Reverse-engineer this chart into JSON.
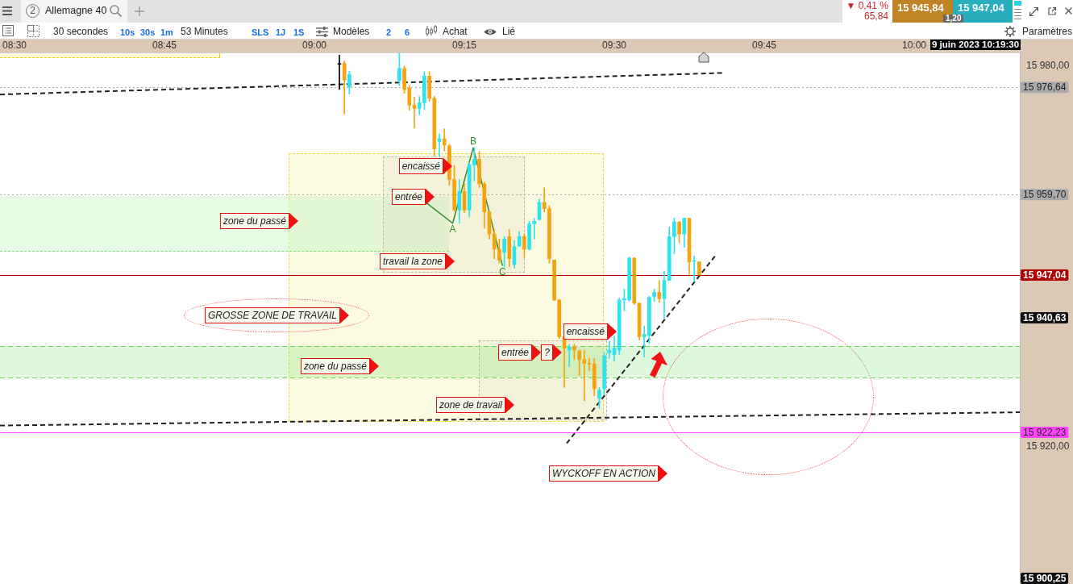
{
  "chart_data": {
    "type": "candlestick",
    "x": [
      9.0417,
      9.05,
      9.0583,
      9.1417,
      9.15,
      9.1583,
      9.1667,
      9.175,
      9.1833,
      9.1917,
      9.2,
      9.2083,
      9.2167,
      9.225,
      9.2333,
      9.2417,
      9.25,
      9.2583,
      9.2667,
      9.275,
      9.2833,
      9.2917,
      9.3,
      9.3083,
      9.3167,
      9.325,
      9.3333,
      9.3417,
      9.35,
      9.3583,
      9.3667,
      9.375,
      9.3833,
      9.3917,
      9.4,
      9.4083,
      9.4167,
      9.425,
      9.4333,
      9.4417,
      9.45,
      9.4583,
      9.4667,
      9.475,
      9.4833,
      9.4917,
      9.5,
      9.5083,
      9.5167,
      9.525,
      9.5333,
      9.5417,
      9.55,
      9.5583,
      9.5667,
      9.575,
      9.5833,
      9.5917,
      9.6,
      9.6083,
      9.6167,
      9.625,
      9.6333,
      9.6417
    ],
    "ohlc": [
      [
        15980.25,
        15981.7,
        15976.3,
        15980.25
      ],
      [
        15980.4,
        15980.8,
        15972.4,
        15977.8
      ],
      [
        15976.7,
        15979.2,
        15975.6,
        15978.7
      ],
      [
        15977.7,
        15982.0,
        15976.9,
        15979.6
      ],
      [
        15979.6,
        15980.0,
        15975.7,
        15976.3
      ],
      [
        15976.5,
        15976.9,
        15973.0,
        15973.8
      ],
      [
        15973.8,
        15975.1,
        15970.2,
        15973.3
      ],
      [
        15973.3,
        15975.2,
        15972.3,
        15974.2
      ],
      [
        15974.2,
        15979.1,
        15973.1,
        15978.4
      ],
      [
        15978.4,
        15979.1,
        15974.4,
        15974.9
      ],
      [
        15974.9,
        15975.2,
        15965.8,
        15966.9
      ],
      [
        15968.1,
        15969.3,
        15965.8,
        15968.5
      ],
      [
        15968.5,
        15970.1,
        15966.6,
        15967.5
      ],
      [
        15967.4,
        15967.7,
        15961.2,
        15962.1
      ],
      [
        15962.1,
        15964.3,
        15957.1,
        15957.3
      ],
      [
        15957.3,
        15962.1,
        15955.2,
        15960.2
      ],
      [
        15960.2,
        15961.5,
        15956.9,
        15957.3
      ],
      [
        15957.3,
        15964.8,
        15956.2,
        15964.4
      ],
      [
        15964.4,
        15967.1,
        15961.9,
        15965.3
      ],
      [
        15965.3,
        15966.5,
        15960.8,
        15961.4
      ],
      [
        15961.4,
        15961.7,
        15954.4,
        15957.0
      ],
      [
        15957.0,
        15957.2,
        15952.7,
        15953.5
      ],
      [
        15953.5,
        15954.2,
        15949.6,
        15951.1
      ],
      [
        15951.1,
        15952.7,
        15948.9,
        15949.4
      ],
      [
        15950.6,
        15953.1,
        15948.3,
        15952.7
      ],
      [
        15953.1,
        15954.2,
        15948.3,
        15949.6
      ],
      [
        15948.7,
        15952.5,
        15948.1,
        15951.5
      ],
      [
        15951.6,
        15953.9,
        15951.6,
        15953.1
      ],
      [
        15953.1,
        15953.5,
        15949.8,
        15951.1
      ],
      [
        15951.1,
        15955.5,
        15951.0,
        15955.1
      ],
      [
        15955.1,
        15956.0,
        15952.7,
        15955.5
      ],
      [
        15955.8,
        15959.0,
        15955.7,
        15958.5
      ],
      [
        15958.5,
        15960.8,
        15957.0,
        15957.5
      ],
      [
        15957.5,
        15958.0,
        15948.9,
        15949.6
      ],
      [
        15949.4,
        15949.4,
        15943.0,
        15943.1
      ],
      [
        15943.1,
        15943.2,
        15937.0,
        15937.3
      ],
      [
        15937.3,
        15937.3,
        15929.3,
        15935.5
      ],
      [
        15935.2,
        15936.1,
        15932.6,
        15935.7
      ],
      [
        15935.7,
        15936.1,
        15933.7,
        15935.2
      ],
      [
        15935.1,
        15935.1,
        15931.2,
        15933.7
      ],
      [
        15933.7,
        15935.1,
        15927.2,
        15933.1
      ],
      [
        15933.1,
        15933.9,
        15932.0,
        15933.0
      ],
      [
        15933.0,
        15933.9,
        15928.0,
        15929.1
      ],
      [
        15927.6,
        15929.3,
        15926.0,
        15928.9
      ],
      [
        15929.1,
        15934.8,
        15928.1,
        15934.3
      ],
      [
        15934.8,
        15936.6,
        15933.9,
        15935.2
      ],
      [
        15934.5,
        15937.4,
        15933.5,
        15935.5
      ],
      [
        15935.2,
        15943.4,
        15934.5,
        15943.1
      ],
      [
        15943.1,
        15944.8,
        15941.4,
        15943.3
      ],
      [
        15943.1,
        15949.9,
        15942.9,
        15949.7
      ],
      [
        15949.7,
        15949.8,
        15942.4,
        15942.6
      ],
      [
        15942.6,
        15942.6,
        15936.8,
        15937.3
      ],
      [
        15937.3,
        15939.0,
        15934.1,
        15937.7
      ],
      [
        15937.5,
        15943.7,
        15936.2,
        15943.5
      ],
      [
        15943.6,
        15944.8,
        15942.9,
        15944.3
      ],
      [
        15944.3,
        15946.2,
        15942.7,
        15943.3
      ],
      [
        15943.3,
        15947.7,
        15940.2,
        15946.2
      ],
      [
        15946.2,
        15954.6,
        15946.2,
        15953.1
      ],
      [
        15953.1,
        15956.0,
        15950.4,
        15955.4
      ],
      [
        15955.4,
        15955.5,
        15952.1,
        15953.5
      ],
      [
        15953.5,
        15956.0,
        15951.4,
        15956.0
      ],
      [
        15956.0,
        15956.0,
        15947.1,
        15949.1
      ],
      [
        15949.2,
        15950.0,
        15946.0,
        15949.3
      ],
      [
        15949.1,
        15949.1,
        15947.04,
        15947.04
      ]
    ],
    "colors": [
      "#000000",
      "#f5a30f",
      "#2ee3ec",
      "#2ee3ec",
      "#f5a30f",
      "#f5a30f",
      "#f5a30f",
      "#2ee3ec",
      "#2ee3ec",
      "#f5a30f",
      "#f5a30f",
      "#2ee3ec",
      "#f5a30f",
      "#f5a30f",
      "#f5a30f",
      "#2ee3ec",
      "#f5a30f",
      "#2ee3ec",
      "#2ee3ec",
      "#f5a30f",
      "#f5a30f",
      "#f5a30f",
      "#f5a30f",
      "#f5a30f",
      "#2ee3ec",
      "#f5a30f",
      "#2ee3ec",
      "#2ee3ec",
      "#f5a30f",
      "#2ee3ec",
      "#2ee3ec",
      "#2ee3ec",
      "#f5a30f",
      "#f5a30f",
      "#f5a30f",
      "#f5a30f",
      "#f5a30f",
      "#2ee3ec",
      "#f5a30f",
      "#f5a30f",
      "#f5a30f",
      "#f5a30f",
      "#f5a30f",
      "#2ee3ec",
      "#2ee3ec",
      "#2ee3ec",
      "#2ee3ec",
      "#2ee3ec",
      "#2ee3ec",
      "#2ee3ec",
      "#f5a30f",
      "#f5a30f",
      "#2ee3ec",
      "#2ee3ec",
      "#2ee3ec",
      "#f5a30f",
      "#2ee3ec",
      "#2ee3ec",
      "#2ee3ec",
      "#f5a30f",
      "#2ee3ec",
      "#f5a30f",
      "#2ee3ec",
      "#f5a30f"
    ],
    "xlim": [
      8.4758,
      10.1761
    ],
    "xticks": [
      {
        "value": 8.5,
        "label": "08:30"
      },
      {
        "value": 8.75,
        "label": "08:45"
      },
      {
        "value": 9,
        "label": "09:00"
      },
      {
        "value": 9.25,
        "label": "09:15"
      },
      {
        "value": 9.5,
        "label": "09:30"
      },
      {
        "value": 9.75,
        "label": "09:45"
      },
      {
        "value": 10,
        "label": "10:00"
      }
    ],
    "ylim": [
      15900.25,
      15982.13
    ],
    "yticks": [
      {
        "value": 15920,
        "label": "15 920,00"
      },
      {
        "value": 15980,
        "label": "15 980,00"
      }
    ],
    "series": [
      {
        "type": "line",
        "x": [
          8.4758,
          9.6815
        ],
        "values": [
          15975.5,
          15978.9
        ],
        "color": "#222222",
        "line_style": "dashed"
      },
      {
        "type": "line",
        "x": [
          8.4758,
          10.1761
        ],
        "values": [
          15923.3,
          15925.4
        ],
        "color": "#222222",
        "line_style": "dashed"
      },
      {
        "type": "line",
        "x": [
          9.4207,
          9.6694
        ],
        "values": [
          15920.5,
          15950.2
        ],
        "color": "#222222",
        "line_style": "dashed"
      },
      {
        "type": "line",
        "x": [
          9.1855,
          9.2306,
          9.2648,
          9.3136
        ],
        "values": [
          15958.5,
          15955.2,
          15967.1,
          15948.5
        ],
        "color": "#2e8b2e",
        "line_style": "solid",
        "value_labels": [
          null,
          "A",
          "B",
          "C"
        ]
      }
    ],
    "ref_lines": [
      {
        "axis": "y",
        "value": 15976.64,
        "label": "15 976,64",
        "color": "#aaaaaa",
        "line_style": "dotted"
      },
      {
        "axis": "y",
        "value": 15959.7,
        "label": "15 959,70",
        "color": "#aaaaaa",
        "line_style": "dotted"
      },
      {
        "axis": "y",
        "value": 15947.04,
        "label": "15 947,04",
        "color": "#b00000",
        "line_style": "solid"
      },
      {
        "axis": "y",
        "value": 15922.23,
        "label": "15 922,23",
        "color": "#ff44ff",
        "line_style": "solid"
      },
      {
        "axis": "y",
        "value": 15935.8,
        "color": "#66dd55",
        "line_style": "dashed"
      },
      {
        "axis": "y",
        "value": 15930.9,
        "color": "#66dd55",
        "line_style": "dashed"
      }
    ],
    "bands": [
      {
        "axis": "y",
        "from": 15930.9,
        "to": 15935.8,
        "color": "#66dd55"
      }
    ],
    "annotations": [
      "2",
      "Allemagne 40",
      "30 secondes",
      "10s",
      "30s",
      "1m",
      "53 Minutes",
      "SLS",
      "1J",
      "1S",
      "Modèles",
      "2",
      "6",
      "Achat",
      "Lié",
      "Paramètres",
      "▼ 0,41 %",
      "65,84",
      "15 945,84",
      "15 947,04",
      "1,20",
      "9 juin 2023 10:19:30",
      "zone du passé",
      "entrée",
      "encaissé",
      "travail la zone",
      "GROSSE ZONE DE TRAVAIL",
      "encaissé",
      "entrée",
      "?",
      "zone du passé",
      "zone de travail",
      "WYCKOFF EN ACTION",
      "15 940,63",
      "15 900,25"
    ],
    "legend": false,
    "grid": false,
    "marker": "none"
  }
}
